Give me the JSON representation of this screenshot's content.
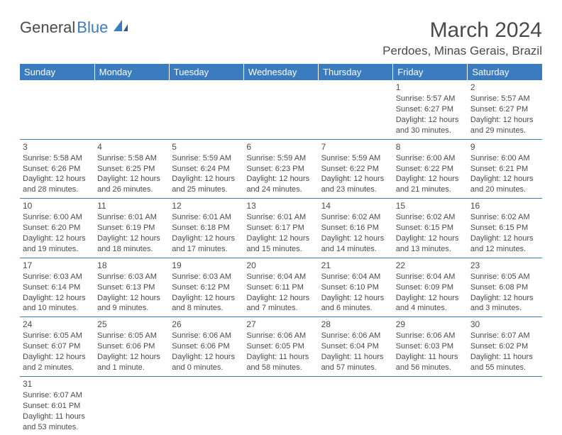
{
  "logo": {
    "part1": "General",
    "part2": "Blue"
  },
  "title": "March 2024",
  "location": "Perdoes, Minas Gerais, Brazil",
  "colors": {
    "header_bg": "#3b7bbf",
    "header_text": "#ffffff",
    "body_text": "#4a4a4a",
    "rule": "#3b7bbf"
  },
  "weekdays": [
    "Sunday",
    "Monday",
    "Tuesday",
    "Wednesday",
    "Thursday",
    "Friday",
    "Saturday"
  ],
  "weeks": [
    [
      null,
      null,
      null,
      null,
      null,
      {
        "n": "1",
        "sr": "Sunrise: 5:57 AM",
        "ss": "Sunset: 6:27 PM",
        "d1": "Daylight: 12 hours",
        "d2": "and 30 minutes."
      },
      {
        "n": "2",
        "sr": "Sunrise: 5:57 AM",
        "ss": "Sunset: 6:27 PM",
        "d1": "Daylight: 12 hours",
        "d2": "and 29 minutes."
      }
    ],
    [
      {
        "n": "3",
        "sr": "Sunrise: 5:58 AM",
        "ss": "Sunset: 6:26 PM",
        "d1": "Daylight: 12 hours",
        "d2": "and 28 minutes."
      },
      {
        "n": "4",
        "sr": "Sunrise: 5:58 AM",
        "ss": "Sunset: 6:25 PM",
        "d1": "Daylight: 12 hours",
        "d2": "and 26 minutes."
      },
      {
        "n": "5",
        "sr": "Sunrise: 5:59 AM",
        "ss": "Sunset: 6:24 PM",
        "d1": "Daylight: 12 hours",
        "d2": "and 25 minutes."
      },
      {
        "n": "6",
        "sr": "Sunrise: 5:59 AM",
        "ss": "Sunset: 6:23 PM",
        "d1": "Daylight: 12 hours",
        "d2": "and 24 minutes."
      },
      {
        "n": "7",
        "sr": "Sunrise: 5:59 AM",
        "ss": "Sunset: 6:22 PM",
        "d1": "Daylight: 12 hours",
        "d2": "and 23 minutes."
      },
      {
        "n": "8",
        "sr": "Sunrise: 6:00 AM",
        "ss": "Sunset: 6:22 PM",
        "d1": "Daylight: 12 hours",
        "d2": "and 21 minutes."
      },
      {
        "n": "9",
        "sr": "Sunrise: 6:00 AM",
        "ss": "Sunset: 6:21 PM",
        "d1": "Daylight: 12 hours",
        "d2": "and 20 minutes."
      }
    ],
    [
      {
        "n": "10",
        "sr": "Sunrise: 6:00 AM",
        "ss": "Sunset: 6:20 PM",
        "d1": "Daylight: 12 hours",
        "d2": "and 19 minutes."
      },
      {
        "n": "11",
        "sr": "Sunrise: 6:01 AM",
        "ss": "Sunset: 6:19 PM",
        "d1": "Daylight: 12 hours",
        "d2": "and 18 minutes."
      },
      {
        "n": "12",
        "sr": "Sunrise: 6:01 AM",
        "ss": "Sunset: 6:18 PM",
        "d1": "Daylight: 12 hours",
        "d2": "and 17 minutes."
      },
      {
        "n": "13",
        "sr": "Sunrise: 6:01 AM",
        "ss": "Sunset: 6:17 PM",
        "d1": "Daylight: 12 hours",
        "d2": "and 15 minutes."
      },
      {
        "n": "14",
        "sr": "Sunrise: 6:02 AM",
        "ss": "Sunset: 6:16 PM",
        "d1": "Daylight: 12 hours",
        "d2": "and 14 minutes."
      },
      {
        "n": "15",
        "sr": "Sunrise: 6:02 AM",
        "ss": "Sunset: 6:15 PM",
        "d1": "Daylight: 12 hours",
        "d2": "and 13 minutes."
      },
      {
        "n": "16",
        "sr": "Sunrise: 6:02 AM",
        "ss": "Sunset: 6:15 PM",
        "d1": "Daylight: 12 hours",
        "d2": "and 12 minutes."
      }
    ],
    [
      {
        "n": "17",
        "sr": "Sunrise: 6:03 AM",
        "ss": "Sunset: 6:14 PM",
        "d1": "Daylight: 12 hours",
        "d2": "and 10 minutes."
      },
      {
        "n": "18",
        "sr": "Sunrise: 6:03 AM",
        "ss": "Sunset: 6:13 PM",
        "d1": "Daylight: 12 hours",
        "d2": "and 9 minutes."
      },
      {
        "n": "19",
        "sr": "Sunrise: 6:03 AM",
        "ss": "Sunset: 6:12 PM",
        "d1": "Daylight: 12 hours",
        "d2": "and 8 minutes."
      },
      {
        "n": "20",
        "sr": "Sunrise: 6:04 AM",
        "ss": "Sunset: 6:11 PM",
        "d1": "Daylight: 12 hours",
        "d2": "and 7 minutes."
      },
      {
        "n": "21",
        "sr": "Sunrise: 6:04 AM",
        "ss": "Sunset: 6:10 PM",
        "d1": "Daylight: 12 hours",
        "d2": "and 6 minutes."
      },
      {
        "n": "22",
        "sr": "Sunrise: 6:04 AM",
        "ss": "Sunset: 6:09 PM",
        "d1": "Daylight: 12 hours",
        "d2": "and 4 minutes."
      },
      {
        "n": "23",
        "sr": "Sunrise: 6:05 AM",
        "ss": "Sunset: 6:08 PM",
        "d1": "Daylight: 12 hours",
        "d2": "and 3 minutes."
      }
    ],
    [
      {
        "n": "24",
        "sr": "Sunrise: 6:05 AM",
        "ss": "Sunset: 6:07 PM",
        "d1": "Daylight: 12 hours",
        "d2": "and 2 minutes."
      },
      {
        "n": "25",
        "sr": "Sunrise: 6:05 AM",
        "ss": "Sunset: 6:06 PM",
        "d1": "Daylight: 12 hours",
        "d2": "and 1 minute."
      },
      {
        "n": "26",
        "sr": "Sunrise: 6:06 AM",
        "ss": "Sunset: 6:06 PM",
        "d1": "Daylight: 12 hours",
        "d2": "and 0 minutes."
      },
      {
        "n": "27",
        "sr": "Sunrise: 6:06 AM",
        "ss": "Sunset: 6:05 PM",
        "d1": "Daylight: 11 hours",
        "d2": "and 58 minutes."
      },
      {
        "n": "28",
        "sr": "Sunrise: 6:06 AM",
        "ss": "Sunset: 6:04 PM",
        "d1": "Daylight: 11 hours",
        "d2": "and 57 minutes."
      },
      {
        "n": "29",
        "sr": "Sunrise: 6:06 AM",
        "ss": "Sunset: 6:03 PM",
        "d1": "Daylight: 11 hours",
        "d2": "and 56 minutes."
      },
      {
        "n": "30",
        "sr": "Sunrise: 6:07 AM",
        "ss": "Sunset: 6:02 PM",
        "d1": "Daylight: 11 hours",
        "d2": "and 55 minutes."
      }
    ],
    [
      {
        "n": "31",
        "sr": "Sunrise: 6:07 AM",
        "ss": "Sunset: 6:01 PM",
        "d1": "Daylight: 11 hours",
        "d2": "and 53 minutes."
      },
      null,
      null,
      null,
      null,
      null,
      null
    ]
  ]
}
